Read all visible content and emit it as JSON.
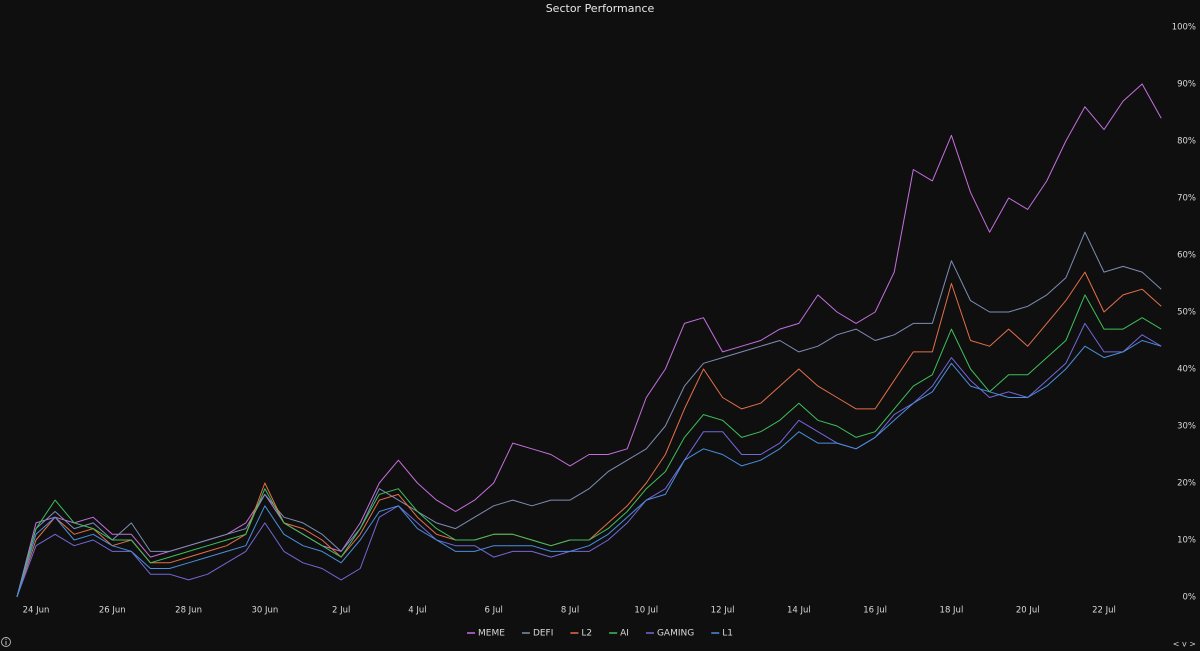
{
  "chart_data": {
    "type": "line",
    "title": "Sector Performance",
    "categories": [
      null,
      "24 Jun",
      null,
      null,
      null,
      "26 Jun",
      null,
      null,
      null,
      "28 Jun",
      null,
      null,
      null,
      "30 Jun",
      null,
      null,
      null,
      "2 Jul",
      null,
      null,
      null,
      "4 Jul",
      null,
      null,
      null,
      "6 Jul",
      null,
      null,
      null,
      "8 Jul",
      null,
      null,
      null,
      "10 Jul",
      null,
      null,
      null,
      "12 Jul",
      null,
      null,
      null,
      "14 Jul",
      null,
      null,
      null,
      "16 Jul",
      null,
      null,
      null,
      "18 Jul",
      null,
      null,
      null,
      "20 Jul",
      null,
      null,
      null,
      "22 Jul",
      null,
      null,
      null
    ],
    "ylim": [
      0,
      100
    ],
    "yticks": [
      {
        "value": 0,
        "label": "0%"
      },
      {
        "value": 10,
        "label": "10%"
      },
      {
        "value": 20,
        "label": "20%"
      },
      {
        "value": 30,
        "label": "30%"
      },
      {
        "value": 40,
        "label": "40%"
      },
      {
        "value": 50,
        "label": "50%"
      },
      {
        "value": 60,
        "label": "60%"
      },
      {
        "value": 70,
        "label": "70%"
      },
      {
        "value": 80,
        "label": "80%"
      },
      {
        "value": 90,
        "label": "90%"
      },
      {
        "value": 100,
        "label": "100%"
      }
    ],
    "y_axis_side": "right",
    "grid": false,
    "legend_position": "bottom",
    "nav_controls": "< v >",
    "series": [
      {
        "name": "MEME",
        "color": "#c56fdc",
        "values": [
          0,
          13,
          14,
          13,
          14,
          11,
          11,
          7,
          8,
          9,
          10,
          11,
          13,
          18,
          13,
          11,
          9,
          8,
          13,
          20,
          24,
          20,
          17,
          15,
          17,
          20,
          27,
          26,
          25,
          23,
          25,
          25,
          26,
          35,
          40,
          48,
          49,
          43,
          44,
          45,
          47,
          48,
          53,
          50,
          48,
          50,
          57,
          75,
          73,
          81,
          71,
          64,
          70,
          68,
          73,
          80,
          86,
          82,
          87,
          90,
          84
        ]
      },
      {
        "name": "DEFI",
        "color": "#7d8db4",
        "values": [
          0,
          12,
          15,
          12,
          13,
          10,
          13,
          8,
          8,
          9,
          10,
          11,
          12,
          18,
          14,
          13,
          11,
          8,
          12,
          19,
          17,
          15,
          13,
          12,
          14,
          16,
          17,
          16,
          17,
          17,
          19,
          22,
          24,
          26,
          30,
          37,
          41,
          42,
          43,
          44,
          45,
          43,
          44,
          46,
          47,
          45,
          46,
          48,
          48,
          59,
          52,
          50,
          50,
          51,
          53,
          56,
          64,
          57,
          58,
          57,
          54
        ]
      },
      {
        "name": "L2",
        "color": "#e46f48",
        "values": [
          0,
          10,
          14,
          11,
          12,
          9,
          10,
          6,
          6,
          7,
          8,
          9,
          11,
          20,
          13,
          12,
          10,
          7,
          11,
          17,
          18,
          14,
          11,
          10,
          10,
          11,
          11,
          10,
          9,
          10,
          10,
          13,
          16,
          20,
          25,
          33,
          40,
          35,
          33,
          34,
          37,
          40,
          37,
          35,
          33,
          33,
          38,
          43,
          43,
          55,
          45,
          44,
          47,
          44,
          48,
          52,
          57,
          50,
          53,
          54,
          51
        ]
      },
      {
        "name": "AI",
        "color": "#3fbf5a",
        "values": [
          0,
          12,
          17,
          13,
          12,
          10,
          10,
          6,
          7,
          8,
          9,
          10,
          11,
          19,
          13,
          11,
          9,
          7,
          12,
          18,
          19,
          15,
          12,
          10,
          10,
          11,
          11,
          10,
          9,
          10,
          10,
          12,
          15,
          19,
          22,
          28,
          32,
          31,
          28,
          29,
          31,
          34,
          31,
          30,
          28,
          29,
          33,
          37,
          39,
          47,
          40,
          36,
          39,
          39,
          42,
          45,
          53,
          47,
          47,
          49,
          47
        ]
      },
      {
        "name": "GAMING",
        "color": "#7468d8",
        "values": [
          0,
          9,
          11,
          9,
          10,
          8,
          8,
          4,
          4,
          3,
          4,
          6,
          8,
          13,
          8,
          6,
          5,
          3,
          5,
          14,
          16,
          13,
          10,
          9,
          9,
          7,
          8,
          8,
          7,
          8,
          8,
          10,
          13,
          17,
          19,
          24,
          29,
          29,
          25,
          25,
          27,
          31,
          29,
          27,
          26,
          28,
          32,
          34,
          37,
          42,
          38,
          35,
          36,
          35,
          38,
          41,
          48,
          43,
          43,
          46,
          44
        ]
      },
      {
        "name": "L1",
        "color": "#4a8fdc",
        "values": [
          0,
          11,
          14,
          10,
          11,
          9,
          8,
          5,
          5,
          6,
          7,
          8,
          9,
          16,
          11,
          9,
          8,
          6,
          10,
          15,
          16,
          12,
          10,
          8,
          8,
          9,
          9,
          9,
          8,
          8,
          9,
          11,
          14,
          17,
          18,
          24,
          26,
          25,
          23,
          24,
          26,
          29,
          27,
          27,
          26,
          28,
          31,
          34,
          36,
          41,
          37,
          36,
          35,
          35,
          37,
          40,
          44,
          42,
          43,
          45,
          44
        ]
      }
    ]
  }
}
